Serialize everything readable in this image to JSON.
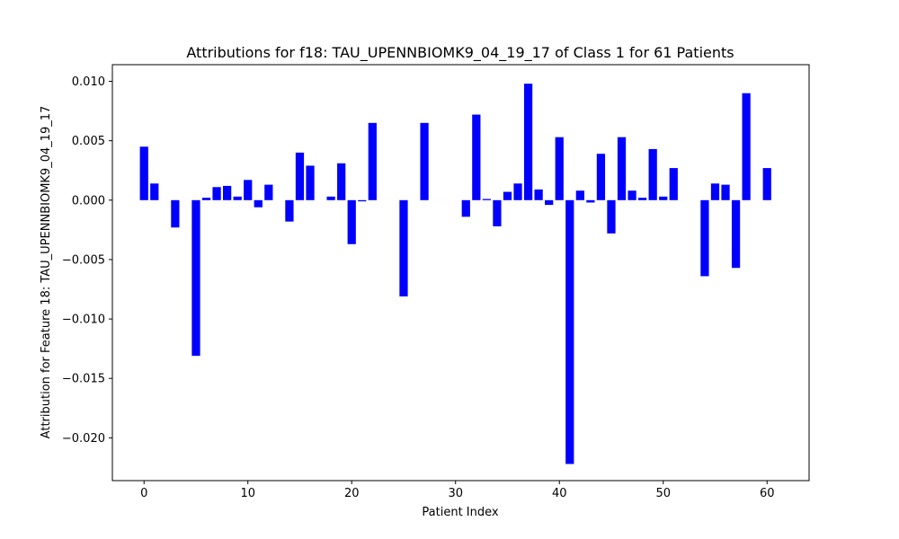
{
  "chart_data": {
    "type": "bar",
    "title": "Attributions for f18: TAU_UPENNBIOMK9_04_19_17 of Class 1 for 61 Patients",
    "xlabel": "Patient Index",
    "ylabel": "Attribution for Feature 18: TAU_UPENNBIOMK9_04_19_17",
    "xlim": [
      -3.05,
      64.05
    ],
    "ylim": [
      -0.0236,
      0.0114
    ],
    "xticks": [
      0,
      10,
      20,
      30,
      40,
      50,
      60
    ],
    "yticks": [
      -0.02,
      -0.015,
      -0.01,
      -0.005,
      0.0,
      0.005,
      0.01
    ],
    "ytick_labels": [
      "−0.020",
      "−0.015",
      "−0.010",
      "−0.005",
      "0.000",
      "0.005",
      "0.010"
    ],
    "bar_color": "#0000ff",
    "grid": false,
    "x": [
      0,
      1,
      2,
      3,
      4,
      5,
      6,
      7,
      8,
      9,
      10,
      11,
      12,
      13,
      14,
      15,
      16,
      17,
      18,
      19,
      20,
      21,
      22,
      23,
      24,
      25,
      26,
      27,
      28,
      29,
      30,
      31,
      32,
      33,
      34,
      35,
      36,
      37,
      38,
      39,
      40,
      41,
      42,
      43,
      44,
      45,
      46,
      47,
      48,
      49,
      50,
      51,
      52,
      53,
      54,
      55,
      56,
      57,
      58,
      59,
      60
    ],
    "values": [
      0.0045,
      0.0014,
      0,
      -0.0023,
      0,
      -0.0131,
      0.0002,
      0.0011,
      0.0012,
      0.0003,
      0.0017,
      -0.0006,
      0.0013,
      0,
      -0.0018,
      0.004,
      0.0029,
      0,
      0.0003,
      0.0031,
      -0.0037,
      -0.0001,
      0.0065,
      0,
      0,
      -0.0081,
      0,
      0.0065,
      0,
      0,
      0,
      -0.0014,
      0.0072,
      0.0001,
      -0.0022,
      0.0007,
      0.0014,
      0.0098,
      0.0009,
      -0.0004,
      0.0053,
      -0.0222,
      0.0008,
      -0.0002,
      0.0039,
      -0.0028,
      0.0053,
      0.0008,
      0.0002,
      0.0043,
      0.0003,
      0.0027,
      0,
      0,
      -0.0064,
      0.0014,
      0.0013,
      -0.0057,
      0.009,
      0,
      0.0027
    ]
  }
}
